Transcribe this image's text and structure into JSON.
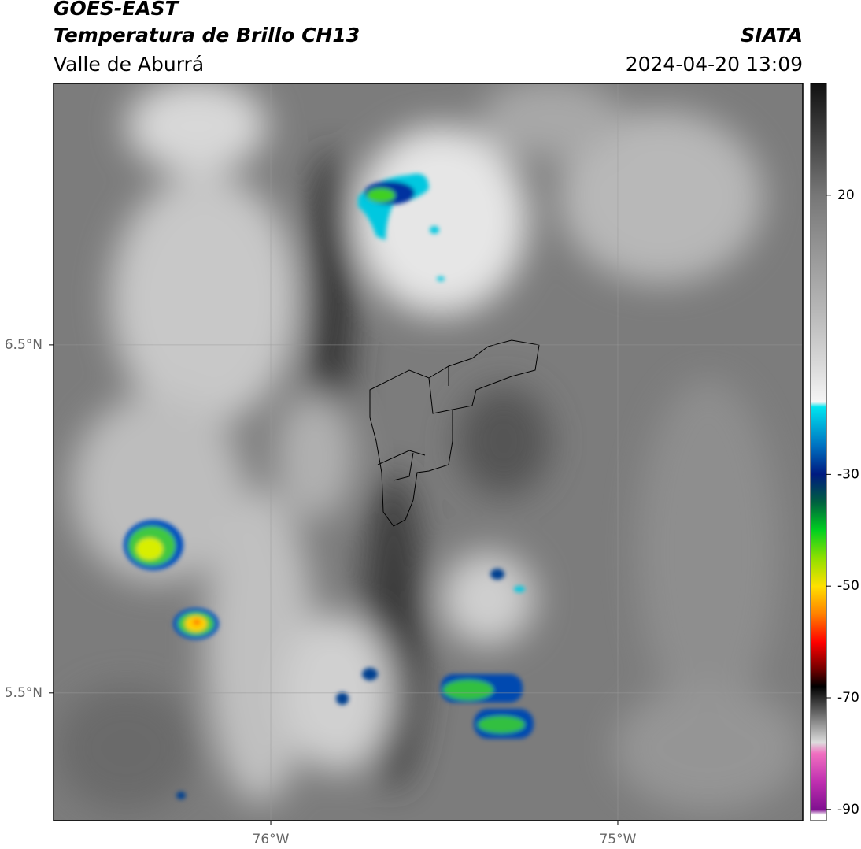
{
  "header": {
    "title": "GOES-EAST",
    "subtitle": "Temperatura de Brillo CH13",
    "region": "Valle de Aburrá",
    "source": "SIATA",
    "timestamp": "2024-04-20 13:09"
  },
  "map": {
    "xlim": [
      -76.626,
      -74.467
    ],
    "ylim": [
      5.133,
      7.251
    ],
    "xticks": [
      {
        "value": -76,
        "label": "76°W"
      },
      {
        "value": -75,
        "label": "75°W"
      }
    ],
    "yticks": [
      {
        "value": 6.5,
        "label": "6.5°N"
      },
      {
        "value": 5.5,
        "label": "5.5°N"
      }
    ]
  },
  "colorbar": {
    "lim": [
      -92,
      40
    ],
    "ticks": [
      20,
      -30,
      -50,
      -70,
      -90
    ]
  }
}
